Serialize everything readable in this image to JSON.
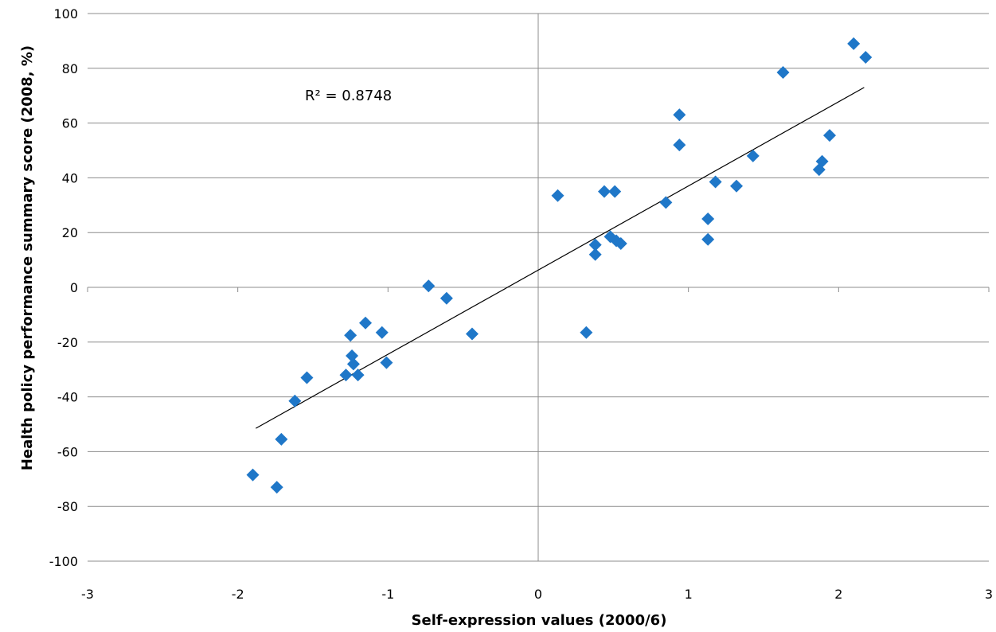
{
  "chart_data": {
    "type": "scatter",
    "xlabel": "Self-expression values (2000/6)",
    "ylabel": "Health policy performance summary score (2008, %)",
    "xlim": [
      -3,
      3
    ],
    "ylim": [
      -100,
      100
    ],
    "xticks": [
      -3,
      -2,
      -1,
      0,
      1,
      2,
      3
    ],
    "yticks": [
      -100,
      -80,
      -60,
      -40,
      -20,
      0,
      20,
      40,
      60,
      80,
      100
    ],
    "grid": "horizontal",
    "marker_color": "#1F77C8",
    "annotation": "R² = 0.8748",
    "trendline": {
      "x": [
        -1.88,
        2.17
      ],
      "y": [
        -51.5,
        73
      ]
    },
    "points": [
      {
        "x": -1.9,
        "y": -68.5
      },
      {
        "x": -1.74,
        "y": -73
      },
      {
        "x": -1.71,
        "y": -55.5
      },
      {
        "x": -1.62,
        "y": -41.5
      },
      {
        "x": -1.54,
        "y": -33
      },
      {
        "x": -1.28,
        "y": -32
      },
      {
        "x": -1.25,
        "y": -17.5
      },
      {
        "x": -1.24,
        "y": -25
      },
      {
        "x": -1.23,
        "y": -28
      },
      {
        "x": -1.2,
        "y": -32
      },
      {
        "x": -1.15,
        "y": -13
      },
      {
        "x": -1.04,
        "y": -16.5
      },
      {
        "x": -1.01,
        "y": -27.5
      },
      {
        "x": -0.73,
        "y": 0.5
      },
      {
        "x": -0.61,
        "y": -4
      },
      {
        "x": -0.44,
        "y": -17
      },
      {
        "x": 0.13,
        "y": 33.5
      },
      {
        "x": 0.32,
        "y": -16.5
      },
      {
        "x": 0.38,
        "y": 15.5
      },
      {
        "x": 0.38,
        "y": 12
      },
      {
        "x": 0.44,
        "y": 35
      },
      {
        "x": 0.48,
        "y": 18.5
      },
      {
        "x": 0.51,
        "y": 35
      },
      {
        "x": 0.52,
        "y": 17
      },
      {
        "x": 0.55,
        "y": 16
      },
      {
        "x": 0.85,
        "y": 31
      },
      {
        "x": 0.94,
        "y": 63
      },
      {
        "x": 0.94,
        "y": 52
      },
      {
        "x": 1.13,
        "y": 25
      },
      {
        "x": 1.13,
        "y": 17.5
      },
      {
        "x": 1.18,
        "y": 38.5
      },
      {
        "x": 1.32,
        "y": 37
      },
      {
        "x": 1.43,
        "y": 48
      },
      {
        "x": 1.63,
        "y": 78.5
      },
      {
        "x": 1.87,
        "y": 43
      },
      {
        "x": 1.89,
        "y": 46
      },
      {
        "x": 1.94,
        "y": 55.5
      },
      {
        "x": 2.1,
        "y": 89
      },
      {
        "x": 2.18,
        "y": 84
      }
    ]
  }
}
